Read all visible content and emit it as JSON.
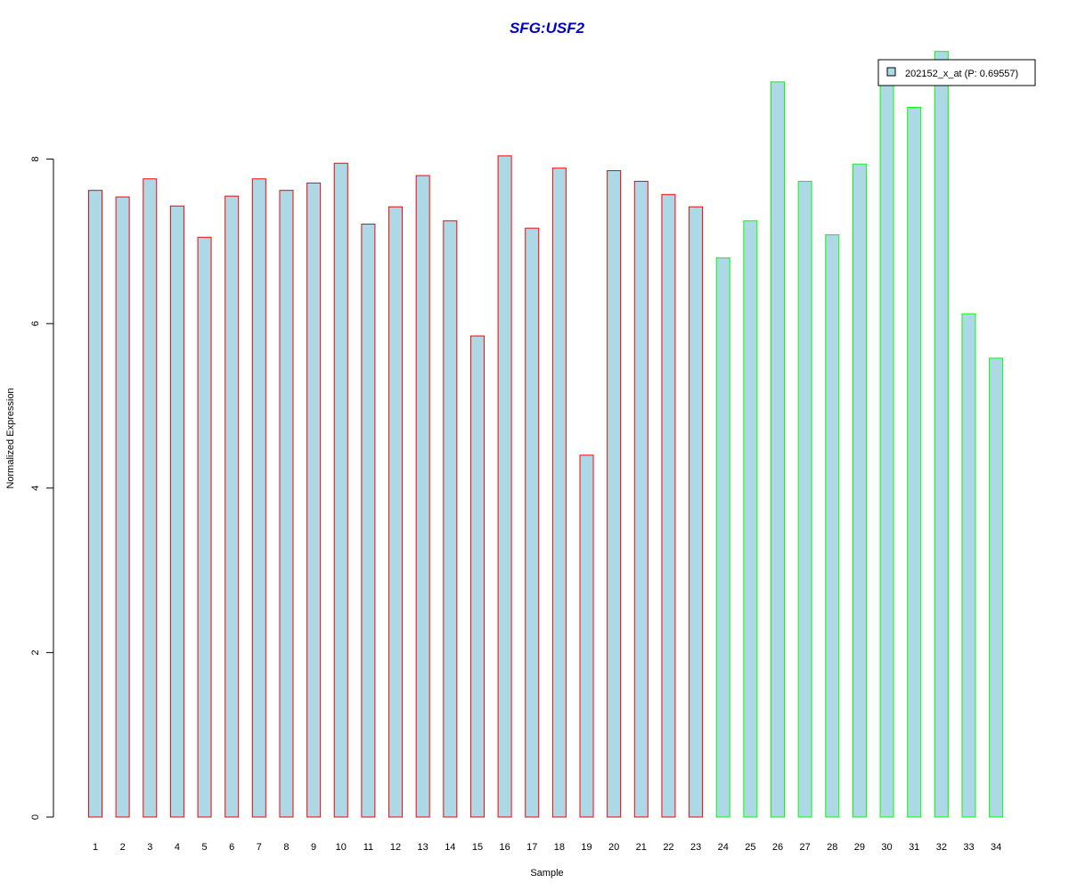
{
  "chart_data": {
    "type": "bar",
    "title": "SFG:USF2",
    "xlabel": "Sample",
    "ylabel": "Normalized Expression",
    "ylim": [
      0,
      9.4
    ],
    "yticks": [
      0,
      2,
      4,
      6,
      8
    ],
    "grid": false,
    "legend_position": "top-right",
    "categories": [
      "1",
      "2",
      "3",
      "4",
      "5",
      "6",
      "7",
      "8",
      "9",
      "10",
      "11",
      "12",
      "13",
      "14",
      "15",
      "16",
      "17",
      "18",
      "19",
      "20",
      "21",
      "22",
      "23",
      "24",
      "25",
      "26",
      "27",
      "28",
      "29",
      "30",
      "31",
      "32",
      "33",
      "34"
    ],
    "series": [
      {
        "name": "202152_x_at (P: 0.69557)",
        "values": [
          7.62,
          7.54,
          7.76,
          7.43,
          7.05,
          7.55,
          7.76,
          7.62,
          7.71,
          7.95,
          7.21,
          7.42,
          7.8,
          7.25,
          5.85,
          8.04,
          7.16,
          7.89,
          4.4,
          7.86,
          7.73,
          7.57,
          7.42,
          6.8,
          7.25,
          8.94,
          7.73,
          7.08,
          7.94,
          9.05,
          8.63,
          9.31,
          6.12,
          5.58
        ]
      }
    ],
    "colors": {
      "bar_fill": "#ADD8E6",
      "group1_border": "#FF0000",
      "group2_border": "#00FF00",
      "title": "#0000CD"
    },
    "border_groups": [
      "group1",
      "group1",
      "group1",
      "group1",
      "group1",
      "group1",
      "group1",
      "group1",
      "group1",
      "group1",
      "group1",
      "group1",
      "group1",
      "group1",
      "group1",
      "group1",
      "group1",
      "group1",
      "group1",
      "group1",
      "group1",
      "group1",
      "group1",
      "group2",
      "group2",
      "group2",
      "group2",
      "group2",
      "group2",
      "group2",
      "group2",
      "group2",
      "group2",
      "group2"
    ]
  }
}
